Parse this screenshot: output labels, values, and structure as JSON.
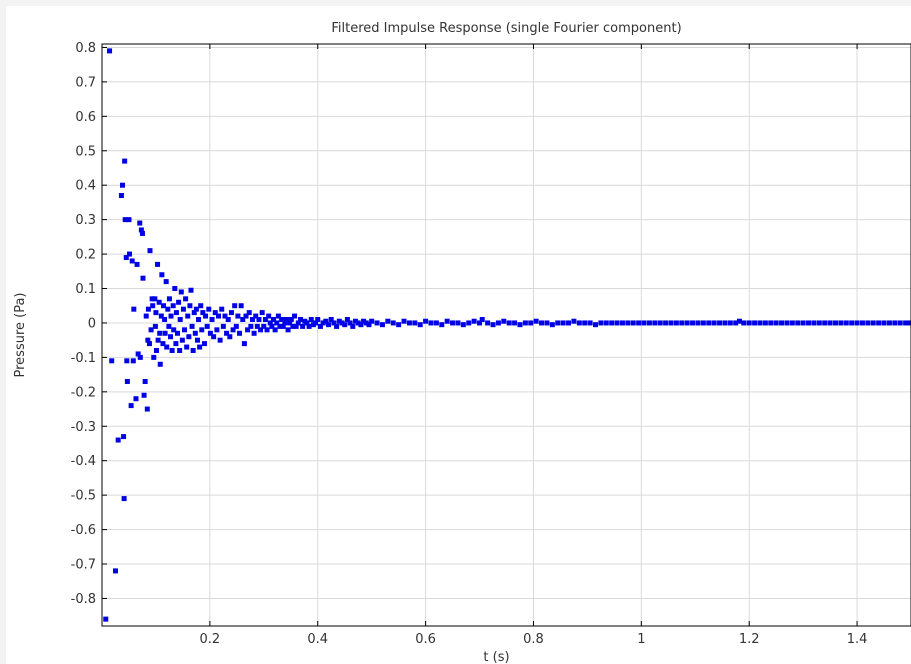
{
  "chart_data": {
    "type": "scatter",
    "title": "Filtered Impulse Response (single Fourier component)",
    "xlabel": "t (s)",
    "ylabel": "Pressure (Pa)",
    "xlim": [
      0,
      1.5
    ],
    "ylim": [
      -0.88,
      0.81
    ],
    "xticks": [
      0.2,
      0.4,
      0.6,
      0.8,
      1.0,
      1.2,
      1.4
    ],
    "xtick_labels": [
      "0.2",
      "0.4",
      "0.6",
      "0.8",
      "1",
      "1.2",
      "1.4"
    ],
    "yticks": [
      0.8,
      0.7,
      0.6,
      0.5,
      0.4,
      0.3,
      0.2,
      0.1,
      0,
      -0.1,
      -0.2,
      -0.3,
      -0.4,
      -0.5,
      -0.6,
      -0.7,
      -0.8
    ],
    "ytick_labels": [
      "0.8",
      "0.7",
      "0.6",
      "0.5",
      "0.4",
      "0.3",
      "0.2",
      "0.1",
      "0",
      "-0.1",
      "-0.2",
      "-0.3",
      "-0.4",
      "-0.5",
      "-0.6",
      "-0.7",
      "-0.8"
    ],
    "grid": true,
    "marker_color": "#0000e6",
    "series": [
      {
        "points": [
          [
            0.007,
            -0.86
          ],
          [
            0.014,
            0.79
          ],
          [
            0.018,
            -0.11
          ],
          [
            0.025,
            -0.72
          ],
          [
            0.03,
            -0.34
          ],
          [
            0.036,
            0.37
          ],
          [
            0.038,
            0.4
          ],
          [
            0.04,
            -0.33
          ],
          [
            0.041,
            -0.51
          ],
          [
            0.042,
            0.47
          ],
          [
            0.043,
            0.3
          ],
          [
            0.045,
            0.19
          ],
          [
            0.046,
            -0.11
          ],
          [
            0.047,
            -0.17
          ],
          [
            0.05,
            0.3
          ],
          [
            0.051,
            0.2
          ],
          [
            0.054,
            -0.24
          ],
          [
            0.056,
            0.18
          ],
          [
            0.058,
            -0.11
          ],
          [
            0.059,
            0.04
          ],
          [
            0.063,
            -0.22
          ],
          [
            0.065,
            0.17
          ],
          [
            0.067,
            -0.09
          ],
          [
            0.07,
            0.29
          ],
          [
            0.071,
            -0.1
          ],
          [
            0.073,
            0.27
          ],
          [
            0.075,
            0.26
          ],
          [
            0.076,
            0.13
          ],
          [
            0.078,
            -0.21
          ],
          [
            0.08,
            -0.17
          ],
          [
            0.082,
            0.02
          ],
          [
            0.084,
            -0.25
          ],
          [
            0.085,
            -0.05
          ],
          [
            0.086,
            0.04
          ],
          [
            0.088,
            -0.06
          ],
          [
            0.089,
            0.21
          ],
          [
            0.091,
            -0.02
          ],
          [
            0.093,
            0.07
          ],
          [
            0.094,
            0.05
          ],
          [
            0.096,
            -0.1
          ],
          [
            0.098,
            0.07
          ],
          [
            0.099,
            -0.01
          ],
          [
            0.1,
            0.03
          ],
          [
            0.101,
            -0.08
          ],
          [
            0.103,
            0.17
          ],
          [
            0.104,
            -0.05
          ],
          [
            0.106,
            0.06
          ],
          [
            0.107,
            -0.03
          ],
          [
            0.108,
            -0.12
          ],
          [
            0.11,
            0.02
          ],
          [
            0.111,
            0.14
          ],
          [
            0.113,
            -0.06
          ],
          [
            0.114,
            0.05
          ],
          [
            0.116,
            0.01
          ],
          [
            0.117,
            -0.03
          ],
          [
            0.119,
            0.12
          ],
          [
            0.12,
            -0.07
          ],
          [
            0.122,
            0.04
          ],
          [
            0.124,
            -0.01
          ],
          [
            0.125,
            0.07
          ],
          [
            0.127,
            -0.04
          ],
          [
            0.128,
            0.02
          ],
          [
            0.13,
            -0.08
          ],
          [
            0.132,
            0.05
          ],
          [
            0.133,
            -0.02
          ],
          [
            0.135,
            0.1
          ],
          [
            0.137,
            -0.06
          ],
          [
            0.138,
            0.03
          ],
          [
            0.14,
            -0.03
          ],
          [
            0.142,
            0.06
          ],
          [
            0.144,
            -0.08
          ],
          [
            0.145,
            0.01
          ],
          [
            0.147,
            0.09
          ],
          [
            0.149,
            -0.05
          ],
          [
            0.151,
            0.04
          ],
          [
            0.153,
            -0.02
          ],
          [
            0.155,
            0.07
          ],
          [
            0.157,
            -0.07
          ],
          [
            0.159,
            0.02
          ],
          [
            0.161,
            -0.04
          ],
          [
            0.163,
            0.05
          ],
          [
            0.165,
            0.095
          ],
          [
            0.167,
            -0.01
          ],
          [
            0.169,
            -0.08
          ],
          [
            0.171,
            0.03
          ],
          [
            0.173,
            -0.03
          ],
          [
            0.175,
            0.04
          ],
          [
            0.177,
            -0.05
          ],
          [
            0.179,
            0.01
          ],
          [
            0.181,
            -0.07
          ],
          [
            0.183,
            0.05
          ],
          [
            0.185,
            -0.02
          ],
          [
            0.187,
            0.03
          ],
          [
            0.19,
            -0.06
          ],
          [
            0.192,
            0.02
          ],
          [
            0.195,
            -0.01
          ],
          [
            0.198,
            0.04
          ],
          [
            0.201,
            -0.03
          ],
          [
            0.204,
            0.01
          ],
          [
            0.207,
            -0.04
          ],
          [
            0.21,
            0.03
          ],
          [
            0.213,
            -0.02
          ],
          [
            0.216,
            0.02
          ],
          [
            0.219,
            -0.05
          ],
          [
            0.222,
            0.04
          ],
          [
            0.225,
            -0.01
          ],
          [
            0.228,
            0.02
          ],
          [
            0.231,
            -0.03
          ],
          [
            0.234,
            0.01
          ],
          [
            0.237,
            -0.04
          ],
          [
            0.24,
            0.03
          ],
          [
            0.243,
            -0.02
          ],
          [
            0.246,
            0.05
          ],
          [
            0.249,
            -0.01
          ],
          [
            0.252,
            0.02
          ],
          [
            0.255,
            -0.03
          ],
          [
            0.258,
            0.05
          ],
          [
            0.261,
            0.01
          ],
          [
            0.264,
            -0.06
          ],
          [
            0.267,
            0.02
          ],
          [
            0.27,
            -0.02
          ],
          [
            0.273,
            0.03
          ],
          [
            0.276,
            -0.01
          ],
          [
            0.279,
            0.01
          ],
          [
            0.282,
            -0.03
          ],
          [
            0.285,
            0.02
          ],
          [
            0.288,
            -0.01
          ],
          [
            0.291,
            0.01
          ],
          [
            0.294,
            -0.02
          ],
          [
            0.297,
            0.03
          ],
          [
            0.3,
            -0.01
          ],
          [
            0.303,
            0.01
          ],
          [
            0.306,
            -0.02
          ],
          [
            0.309,
            0.02
          ],
          [
            0.312,
            0.0
          ],
          [
            0.315,
            -0.01
          ],
          [
            0.318,
            0.01
          ],
          [
            0.321,
            -0.02
          ],
          [
            0.324,
            0.0
          ],
          [
            0.327,
            0.02
          ],
          [
            0.33,
            -0.01
          ],
          [
            0.333,
            0.01
          ],
          [
            0.336,
            -0.01
          ],
          [
            0.339,
            0.0
          ],
          [
            0.342,
            0.01
          ],
          [
            0.345,
            -0.02
          ],
          [
            0.348,
            0.0
          ],
          [
            0.351,
            0.01
          ],
          [
            0.354,
            -0.01
          ],
          [
            0.357,
            0.02
          ],
          [
            0.36,
            -0.01
          ],
          [
            0.364,
            0.0
          ],
          [
            0.368,
            0.01
          ],
          [
            0.372,
            -0.01
          ],
          [
            0.376,
            0.005
          ],
          [
            0.38,
            0.0
          ],
          [
            0.384,
            -0.01
          ],
          [
            0.388,
            0.01
          ],
          [
            0.392,
            -0.005
          ],
          [
            0.396,
            0.0
          ],
          [
            0.4,
            0.01
          ],
          [
            0.405,
            -0.01
          ],
          [
            0.41,
            0.0
          ],
          [
            0.415,
            0.005
          ],
          [
            0.42,
            -0.005
          ],
          [
            0.425,
            0.01
          ],
          [
            0.43,
            0.0
          ],
          [
            0.435,
            -0.01
          ],
          [
            0.44,
            0.005
          ],
          [
            0.445,
            0.0
          ],
          [
            0.45,
            -0.005
          ],
          [
            0.455,
            0.01
          ],
          [
            0.46,
            0.0
          ],
          [
            0.465,
            -0.01
          ],
          [
            0.47,
            0.005
          ],
          [
            0.475,
            0.0
          ],
          [
            0.48,
            -0.005
          ],
          [
            0.485,
            0.005
          ],
          [
            0.49,
            0.0
          ],
          [
            0.495,
            -0.005
          ],
          [
            0.5,
            0.005
          ],
          [
            0.51,
            0.0
          ],
          [
            0.52,
            -0.005
          ],
          [
            0.53,
            0.005
          ],
          [
            0.54,
            0.0
          ],
          [
            0.55,
            -0.005
          ],
          [
            0.56,
            0.005
          ],
          [
            0.57,
            0.0
          ],
          [
            0.58,
            0.0
          ],
          [
            0.59,
            -0.005
          ],
          [
            0.6,
            0.005
          ],
          [
            0.61,
            0.0
          ],
          [
            0.62,
            0.0
          ],
          [
            0.63,
            -0.005
          ],
          [
            0.64,
            0.005
          ],
          [
            0.65,
            0.0
          ],
          [
            0.66,
            0.0
          ],
          [
            0.67,
            -0.005
          ],
          [
            0.68,
            0.0
          ],
          [
            0.69,
            0.005
          ],
          [
            0.7,
            0.0
          ],
          [
            0.705,
            0.01
          ],
          [
            0.715,
            0.0
          ],
          [
            0.725,
            -0.005
          ],
          [
            0.735,
            0.0
          ],
          [
            0.745,
            0.005
          ],
          [
            0.755,
            0.0
          ],
          [
            0.765,
            0.0
          ],
          [
            0.775,
            -0.005
          ],
          [
            0.785,
            0.0
          ],
          [
            0.795,
            0.0
          ],
          [
            0.805,
            0.005
          ],
          [
            0.815,
            0.0
          ],
          [
            0.825,
            0.0
          ],
          [
            0.835,
            -0.005
          ],
          [
            0.845,
            0.0
          ],
          [
            0.855,
            0.0
          ],
          [
            0.865,
            0.0
          ],
          [
            0.875,
            0.005
          ],
          [
            0.885,
            0.0
          ],
          [
            0.895,
            0.0
          ],
          [
            0.905,
            0.0
          ],
          [
            0.915,
            -0.005
          ],
          [
            0.925,
            0.0
          ],
          [
            0.935,
            0.0
          ],
          [
            0.945,
            0.0
          ],
          [
            0.955,
            0.0
          ],
          [
            0.965,
            0.0
          ],
          [
            0.975,
            0.0
          ],
          [
            0.985,
            0.0
          ],
          [
            0.995,
            0.0
          ],
          [
            1.005,
            0.0
          ],
          [
            1.015,
            0.0
          ],
          [
            1.025,
            0.0
          ],
          [
            1.035,
            0.0
          ],
          [
            1.045,
            0.0
          ],
          [
            1.055,
            0.0
          ],
          [
            1.065,
            0.0
          ],
          [
            1.075,
            0.0
          ],
          [
            1.085,
            0.0
          ],
          [
            1.095,
            0.0
          ],
          [
            1.105,
            0.0
          ],
          [
            1.115,
            0.0
          ],
          [
            1.125,
            0.0
          ],
          [
            1.135,
            0.0
          ],
          [
            1.145,
            0.0
          ],
          [
            1.155,
            0.0
          ],
          [
            1.165,
            0.0
          ],
          [
            1.175,
            0.0
          ],
          [
            1.182,
            0.005
          ],
          [
            1.19,
            0.0
          ],
          [
            1.2,
            0.0
          ],
          [
            1.21,
            0.0
          ],
          [
            1.22,
            0.0
          ],
          [
            1.23,
            0.0
          ],
          [
            1.24,
            0.0
          ],
          [
            1.25,
            0.0
          ],
          [
            1.26,
            0.0
          ],
          [
            1.27,
            0.0
          ],
          [
            1.28,
            0.0
          ],
          [
            1.29,
            0.0
          ],
          [
            1.3,
            0.0
          ],
          [
            1.31,
            0.0
          ],
          [
            1.32,
            0.0
          ],
          [
            1.33,
            0.0
          ],
          [
            1.34,
            0.0
          ],
          [
            1.35,
            0.0
          ],
          [
            1.36,
            0.0
          ],
          [
            1.37,
            0.0
          ],
          [
            1.38,
            0.0
          ],
          [
            1.39,
            0.0
          ],
          [
            1.4,
            0.0
          ],
          [
            1.41,
            0.0
          ],
          [
            1.42,
            0.0
          ],
          [
            1.43,
            0.0
          ],
          [
            1.44,
            0.0
          ],
          [
            1.45,
            0.0
          ],
          [
            1.46,
            0.0
          ],
          [
            1.47,
            0.0
          ],
          [
            1.48,
            0.0
          ],
          [
            1.49,
            0.0
          ],
          [
            1.497,
            0.0
          ]
        ]
      }
    ]
  }
}
